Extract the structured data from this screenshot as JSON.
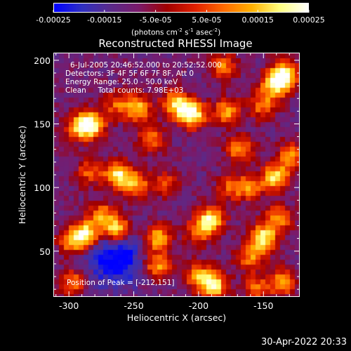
{
  "chart_data": {
    "type": "heatmap",
    "title": "Reconstructed RHESSI Image",
    "xlabel": "Heliocentric X (arcsec)",
    "ylabel": "Heliocentric Y (arcsec)",
    "xlim": [
      -312,
      -122
    ],
    "ylim": [
      14,
      206
    ],
    "x_ticks": [
      "-300",
      "-250",
      "-200",
      "-150"
    ],
    "x_tick_values": [
      -300,
      -250,
      -200,
      -150
    ],
    "y_ticks": [
      "50",
      "100",
      "150",
      "200"
    ],
    "y_tick_values": [
      50,
      100,
      150,
      200
    ],
    "colorbar": {
      "range": [
        -0.00025,
        0.00025
      ],
      "tick_labels": [
        "-0.00025",
        "-0.00015",
        "-5.0e-05",
        "5.0e-05",
        "0.00015",
        "0.00025"
      ],
      "tick_values": [
        -0.00025,
        -0.00015,
        -5e-05,
        5e-05,
        0.00015,
        0.00025
      ],
      "unit_label": "(photons cm",
      "unit_sup1": "-2",
      "unit_mid": " s",
      "unit_sup2": "-1",
      "unit_mid2": " asec",
      "unit_sup3": "-2",
      "unit_end": ")",
      "colors": [
        "#0000ff",
        "#3030c0",
        "#5a2a8a",
        "#7a1a6a",
        "#a00000",
        "#e02000",
        "#ff6a00",
        "#ffb000",
        "#ffff80",
        "#ffffff"
      ]
    },
    "annotations": {
      "time": "6-Jul-2005 20:46:52.000 to 20:52:52.000",
      "detectors": "Detectors: 3F 4F 5F 6F 7F 8F, Att 0",
      "energy": "Energy Range: 25.0 - 50.0 keV",
      "clean": "Clean     Total counts: 7.98E+03",
      "peak": "Position of Peak = [-212,151]"
    },
    "peak_position": [
      -212,
      151
    ],
    "sources": [
      {
        "x": -205,
        "y": 158,
        "v": 1.0
      },
      {
        "x": -218,
        "y": 166,
        "v": 0.75
      },
      {
        "x": -283,
        "y": 150,
        "v": 0.9
      },
      {
        "x": -293,
        "y": 147,
        "v": 0.6
      },
      {
        "x": -247,
        "y": 163,
        "v": 0.7
      },
      {
        "x": -263,
        "y": 165,
        "v": 0.45
      },
      {
        "x": -237,
        "y": 138,
        "v": 0.55
      },
      {
        "x": -262,
        "y": 110,
        "v": 0.85
      },
      {
        "x": -248,
        "y": 102,
        "v": 0.6
      },
      {
        "x": -285,
        "y": 112,
        "v": 0.45
      },
      {
        "x": -287,
        "y": 63,
        "v": 0.9
      },
      {
        "x": -263,
        "y": 67,
        "v": 0.85
      },
      {
        "x": -275,
        "y": 78,
        "v": 0.6
      },
      {
        "x": -298,
        "y": 57,
        "v": 0.6
      },
      {
        "x": -297,
        "y": 25,
        "v": 0.55
      },
      {
        "x": -232,
        "y": 60,
        "v": 0.75
      },
      {
        "x": -232,
        "y": 38,
        "v": 0.65
      },
      {
        "x": -190,
        "y": 75,
        "v": 0.8
      },
      {
        "x": -200,
        "y": 65,
        "v": 0.55
      },
      {
        "x": -188,
        "y": 22,
        "v": 0.85
      },
      {
        "x": -200,
        "y": 30,
        "v": 0.6
      },
      {
        "x": -178,
        "y": 160,
        "v": 0.65
      },
      {
        "x": -168,
        "y": 130,
        "v": 0.6
      },
      {
        "x": -180,
        "y": 195,
        "v": 0.55
      },
      {
        "x": -140,
        "y": 182,
        "v": 0.9
      },
      {
        "x": -132,
        "y": 190,
        "v": 0.75
      },
      {
        "x": -150,
        "y": 165,
        "v": 0.55
      },
      {
        "x": -140,
        "y": 108,
        "v": 0.8
      },
      {
        "x": -128,
        "y": 125,
        "v": 0.6
      },
      {
        "x": -160,
        "y": 100,
        "v": 0.55
      },
      {
        "x": -150,
        "y": 60,
        "v": 0.85
      },
      {
        "x": -138,
        "y": 75,
        "v": 0.6
      },
      {
        "x": -160,
        "y": 45,
        "v": 0.55
      },
      {
        "x": -135,
        "y": 25,
        "v": 0.65
      },
      {
        "x": -155,
        "y": 20,
        "v": 0.5
      },
      {
        "x": -225,
        "y": 103,
        "v": 0.4
      },
      {
        "x": -175,
        "y": 100,
        "v": 0.45
      }
    ],
    "cold_region": {
      "x": -265,
      "y": 45,
      "v": -0.5
    }
  },
  "footer": {
    "timestamp": "30-Apr-2022 20:33"
  }
}
